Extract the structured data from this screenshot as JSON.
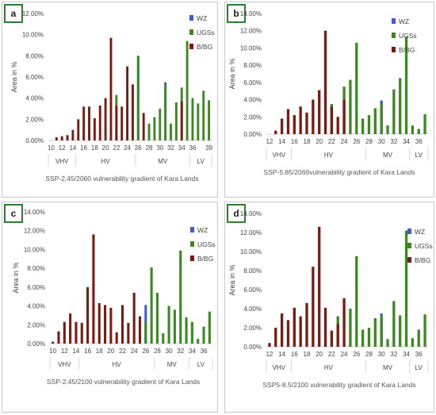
{
  "chart_data": [
    {
      "type": "bar",
      "panel_label": "a",
      "xlabel": "SSP-2.45/2060 vulnerability gradient of Kara Lands",
      "ylabel": "Area in %",
      "ylim": [
        0,
        12
      ],
      "y_ticks": [
        "0.00%",
        "2.00%",
        "4.00%",
        "6.00%",
        "8.00%",
        "10.00%",
        "12.00%"
      ],
      "legend": [
        "WZ",
        "UGSs",
        "B/BG"
      ],
      "x_tick_labels": [
        "10",
        "12",
        "14",
        "16",
        "18",
        "20",
        "22",
        "24",
        "26",
        "28",
        "30",
        "32",
        "34",
        "36",
        "39"
      ],
      "groups": [
        "VHV",
        "HV",
        "MV",
        "LV"
      ],
      "categories": [
        "10",
        "11",
        "12",
        "13",
        "14",
        "15",
        "16",
        "17",
        "18",
        "19",
        "20",
        "21",
        "22",
        "23",
        "24",
        "25",
        "26",
        "27",
        "28",
        "29",
        "30",
        "31",
        "32",
        "33",
        "34",
        "35",
        "36",
        "37",
        "38",
        "39"
      ],
      "series": [
        {
          "name": "WZ",
          "color": "#3b5bdb",
          "values": [
            0,
            0,
            0,
            0,
            0,
            0,
            0,
            0,
            0,
            0,
            0,
            0,
            0,
            0,
            0,
            0,
            8.0,
            0,
            0,
            0,
            0,
            5.5,
            0,
            0,
            0,
            0,
            0,
            0,
            0,
            0
          ]
        },
        {
          "name": "UGSs",
          "color": "#3a8a1f",
          "values": [
            0,
            0,
            0,
            0,
            0,
            0,
            0,
            0,
            0,
            0,
            0,
            0,
            4.3,
            0,
            0,
            0,
            8.0,
            0,
            1.6,
            2.2,
            3.0,
            5.2,
            1.6,
            3.6,
            5.0,
            9.4,
            4.0,
            3.5,
            4.7,
            3.8
          ]
        },
        {
          "name": "B/BG",
          "color": "#7a1a10",
          "values": [
            0,
            0.3,
            0.4,
            0.5,
            1.0,
            2.0,
            3.2,
            3.2,
            2.1,
            3.3,
            4.0,
            9.7,
            3.3,
            3.2,
            7.0,
            5.3,
            0,
            2.6,
            0,
            0,
            0,
            0,
            0,
            0,
            3.7,
            0,
            0,
            0,
            0,
            0
          ]
        }
      ]
    },
    {
      "type": "bar",
      "panel_label": "b",
      "xlabel": "SSP-5.85/2060vulnerability gradient of Kara Lands",
      "ylabel": "Area in %",
      "ylim": [
        0,
        14
      ],
      "y_ticks": [
        "0.00%",
        "2.00%",
        "4.00%",
        "6.00%",
        "8.00%",
        "10.00%",
        "12.00%",
        "14.00%"
      ],
      "legend": [
        "WZ",
        "UGSs",
        "B/BG"
      ],
      "x_tick_labels": [
        "12",
        "14",
        "16",
        "18",
        "20",
        "22",
        "24",
        "26",
        "28",
        "30",
        "32",
        "34",
        "36"
      ],
      "groups": [
        "VHV",
        "HV",
        "MV",
        "LV"
      ],
      "categories": [
        "12",
        "13",
        "14",
        "15",
        "16",
        "17",
        "18",
        "19",
        "20",
        "21",
        "22",
        "23",
        "24",
        "25",
        "26",
        "27",
        "28",
        "29",
        "30",
        "31",
        "32",
        "33",
        "34",
        "35",
        "36",
        "37"
      ],
      "series": [
        {
          "name": "WZ",
          "color": "#3b5bdb",
          "values": [
            0,
            0,
            0,
            0,
            0,
            0,
            0,
            0,
            0,
            0,
            0,
            0,
            0,
            0,
            0,
            0,
            0,
            0,
            3.9,
            0,
            0,
            0,
            0,
            0,
            0,
            0
          ]
        },
        {
          "name": "UGSs",
          "color": "#3a8a1f",
          "values": [
            0,
            0,
            0,
            0,
            0,
            0,
            0,
            0,
            0,
            0,
            3.5,
            0,
            5.5,
            6.3,
            10.6,
            1.8,
            2.2,
            3.0,
            3.5,
            1.0,
            5.2,
            6.5,
            11.3,
            1.0,
            0.6,
            2.3
          ]
        },
        {
          "name": "B/BG",
          "color": "#7a1a10",
          "values": [
            0,
            0.4,
            1.8,
            2.9,
            2.2,
            3.2,
            2.5,
            4.0,
            5.1,
            12.0,
            3.2,
            2.0,
            4.0,
            0,
            0,
            0,
            0,
            0,
            0,
            0,
            0,
            0,
            0,
            0,
            0,
            0
          ]
        }
      ]
    },
    {
      "type": "bar",
      "panel_label": "c",
      "xlabel": "SSP-2.45/2100 vulnerability gradient of Kara Lands",
      "ylabel": "Area in %",
      "ylim": [
        0,
        14
      ],
      "y_ticks": [
        "0.00%",
        "2.00%",
        "4.00%",
        "6.00%",
        "8.00%",
        "10.00%",
        "12.00%",
        "14.00%"
      ],
      "legend": [
        "WZ",
        "UGSs",
        "B/BG"
      ],
      "x_tick_labels": [
        "10",
        "12",
        "14",
        "16",
        "18",
        "20",
        "22",
        "24",
        "26",
        "28",
        "30",
        "32",
        "34",
        "36"
      ],
      "groups": [
        "VHV",
        "HV",
        "MV",
        "LV"
      ],
      "categories": [
        "10",
        "11",
        "12",
        "13",
        "14",
        "15",
        "16",
        "17",
        "18",
        "19",
        "20",
        "21",
        "22",
        "23",
        "24",
        "25",
        "26",
        "27",
        "28",
        "29",
        "30",
        "31",
        "32",
        "33",
        "34",
        "35",
        "36",
        "37"
      ],
      "series": [
        {
          "name": "WZ",
          "color": "#3b5bdb",
          "values": [
            0,
            0,
            0,
            0,
            0,
            0,
            0,
            0,
            0,
            0,
            0,
            0,
            0,
            0,
            0,
            0,
            4.1,
            0,
            0,
            0,
            0,
            0,
            0,
            0,
            0,
            0,
            0,
            0
          ]
        },
        {
          "name": "UGSs",
          "color": "#3a8a1f",
          "values": [
            0,
            0,
            0,
            0,
            0,
            0,
            0,
            0,
            0,
            0,
            0,
            0,
            0,
            0,
            0,
            0,
            2.3,
            8.1,
            5.4,
            1.1,
            4.0,
            3.6,
            9.9,
            2.8,
            2.3,
            0.5,
            1.8,
            3.4
          ]
        },
        {
          "name": "B/BG",
          "color": "#7a1a10",
          "values": [
            0.2,
            1.3,
            2.3,
            3.2,
            2.3,
            2.2,
            6.0,
            11.6,
            4.3,
            4.1,
            3.8,
            1.2,
            4.1,
            2.2,
            5.4,
            2.9,
            0,
            0,
            0,
            0,
            0,
            0,
            0,
            0,
            0,
            0,
            0,
            0
          ]
        }
      ]
    },
    {
      "type": "bar",
      "panel_label": "d",
      "xlabel": "SSP5-8.5/2100 vulnerability gradient of Kara Lands",
      "ylabel": "Area in %",
      "ylim": [
        0,
        14
      ],
      "y_ticks": [
        "0.00%",
        "2.00%",
        "4.00%",
        "6.00%",
        "8.00%",
        "10.00%",
        "12.00%",
        "14.00%"
      ],
      "legend": [
        "WZ",
        "UGSs",
        "B/BG"
      ],
      "x_tick_labels": [
        "12",
        "14",
        "16",
        "18",
        "20",
        "22",
        "24",
        "26",
        "28",
        "30",
        "32",
        "34",
        "36"
      ],
      "groups": [
        "VHV",
        "HV",
        "MV",
        "LV"
      ],
      "categories": [
        "12",
        "13",
        "14",
        "15",
        "16",
        "17",
        "18",
        "19",
        "20",
        "21",
        "22",
        "23",
        "24",
        "25",
        "26",
        "27",
        "28",
        "29",
        "30",
        "31",
        "32",
        "33",
        "34",
        "35",
        "36",
        "37"
      ],
      "series": [
        {
          "name": "WZ",
          "color": "#3b5bdb",
          "values": [
            0,
            0,
            0,
            0,
            0,
            0,
            0,
            0,
            0,
            0,
            0,
            0,
            0,
            0,
            0,
            0,
            0,
            0,
            3.5,
            0,
            0,
            0,
            0,
            0,
            0,
            0
          ]
        },
        {
          "name": "UGSs",
          "color": "#3a8a1f",
          "values": [
            0,
            0,
            0,
            0,
            0,
            0,
            0,
            0,
            0,
            0,
            0,
            3.2,
            0,
            4.0,
            9.5,
            1.8,
            2.0,
            3.0,
            3.3,
            0.8,
            4.8,
            3.3,
            12.2,
            0.9,
            1.8,
            3.4
          ]
        },
        {
          "name": "B/BG",
          "color": "#7a1a10",
          "values": [
            0.4,
            2.0,
            3.5,
            2.8,
            4.1,
            3.2,
            4.6,
            8.4,
            12.6,
            4.1,
            1.7,
            2.4,
            5.1,
            0,
            0,
            0,
            0,
            0,
            0,
            0,
            0,
            0,
            0,
            0,
            0,
            0
          ]
        }
      ]
    }
  ]
}
